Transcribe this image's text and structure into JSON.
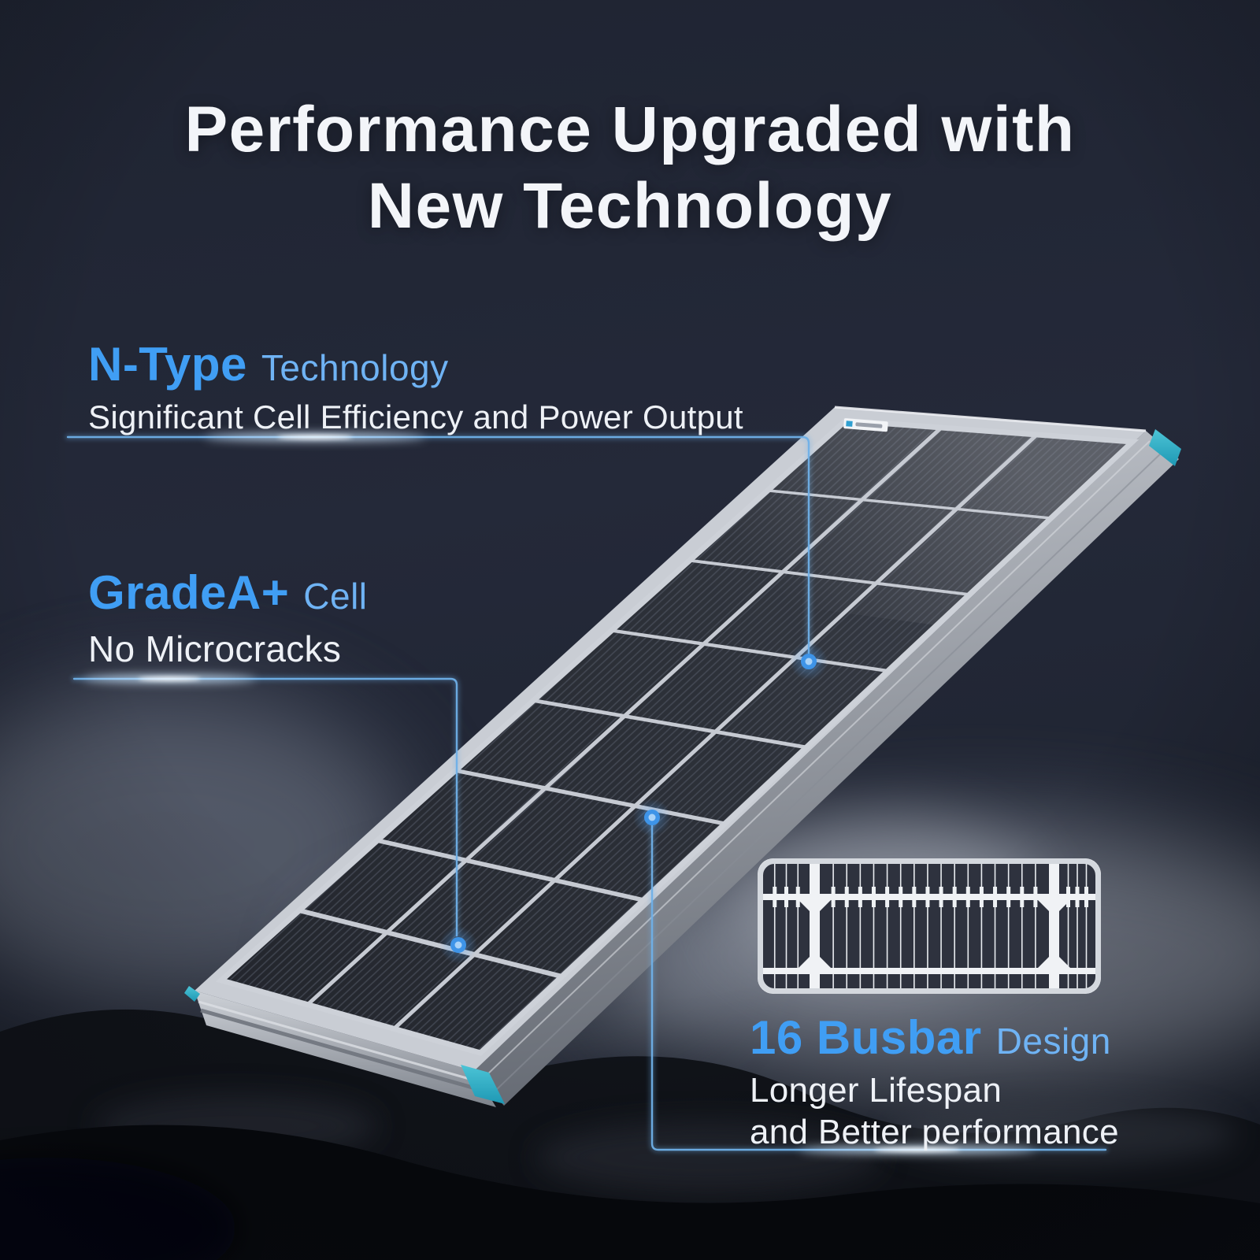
{
  "title": {
    "line1": "Performance Upgraded with",
    "line2": "New Technology"
  },
  "callouts": {
    "n_type": {
      "highlight": "N-Type",
      "label": "Technology",
      "description": "Significant Cell Efficiency and Power Output"
    },
    "grade_a": {
      "highlight": "GradeA+",
      "label": "Cell",
      "description": "No Microcracks"
    },
    "busbar": {
      "highlight": "16 Busbar",
      "label": "Design",
      "description_lines": [
        "Longer Lifespan",
        "and Better performance"
      ]
    }
  },
  "colors": {
    "background": "#232838",
    "title_text": "#f3f5f9",
    "accent_bold": "#409ef4",
    "accent_light": "#6fb3f4",
    "body_text": "#eef1f6",
    "glow_line": "#6fb0e8",
    "indicator_dot": "#3e94e8",
    "cyan_cap": "#2fb2c8",
    "frame_silver": "#c9cdd4",
    "cell_dark": "#2d3139",
    "inset_border": "#d4d8de"
  }
}
